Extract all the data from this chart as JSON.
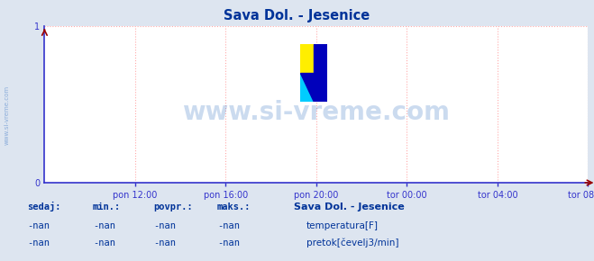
{
  "title": "Sava Dol. - Jesenice",
  "title_color": "#003399",
  "bg_color": "#dde5f0",
  "plot_bg_color": "#ffffff",
  "grid_color": "#ffaaaa",
  "grid_style": ":",
  "axis_color": "#3333cc",
  "ylim": [
    0,
    1
  ],
  "yticks": [
    0,
    1
  ],
  "tick_label_color": "#3333cc",
  "xtick_labels": [
    "pon 12:00",
    "pon 16:00",
    "pon 20:00",
    "tor 00:00",
    "tor 04:00",
    "tor 08:00"
  ],
  "xtick_positions": [
    0.1667,
    0.3333,
    0.5,
    0.6667,
    0.8333,
    1.0
  ],
  "xlim": [
    0,
    1.0
  ],
  "watermark": "www.si-vreme.com",
  "watermark_color": "#5588cc",
  "watermark_alpha": 0.3,
  "side_text": "www.si-vreme.com",
  "side_text_color": "#5588cc",
  "logo_yellow": "#ffee00",
  "logo_cyan": "#00ccff",
  "logo_blue": "#0000bb",
  "legend_title": "Sava Dol. - Jesenice",
  "legend_title_color": "#003399",
  "legend_items": [
    {
      "label": "temperatura[F]",
      "color": "#cc0000"
    },
    {
      "label": "pretok[čevelj3/min]",
      "color": "#00bb00"
    }
  ],
  "table_headers": [
    "sedaj:",
    "min.:",
    "povpr.:",
    "maks.:"
  ],
  "table_values": [
    "-nan",
    "-nan",
    "-nan",
    "-nan"
  ],
  "table_color": "#003399",
  "font_family": "monospace"
}
